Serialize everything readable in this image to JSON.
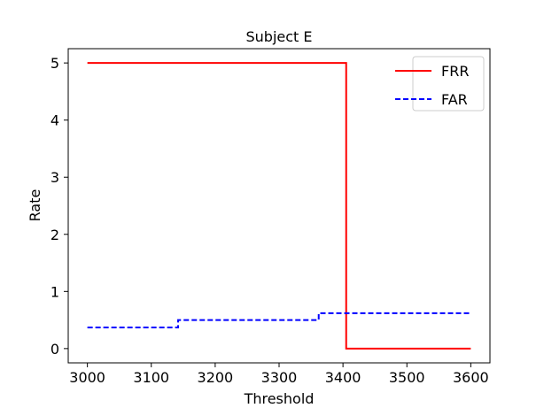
{
  "chart_data": {
    "type": "line",
    "title": "Subject E",
    "xlabel": "Threshold",
    "ylabel": "Rate",
    "xlim": [
      2970,
      3630
    ],
    "ylim": [
      -0.25,
      5.25
    ],
    "xticks": [
      3000,
      3100,
      3200,
      3300,
      3400,
      3500,
      3600
    ],
    "yticks": [
      0,
      1,
      2,
      3,
      4,
      5
    ],
    "grid": false,
    "legend": "top-right",
    "series": [
      {
        "name": "FRR",
        "color": "#ff0000",
        "style": "solid",
        "step": "post",
        "x": [
          3000,
          3405,
          3405,
          3600
        ],
        "y": [
          5,
          5,
          0,
          0
        ]
      },
      {
        "name": "FAR",
        "color": "#0000ff",
        "style": "dashed",
        "step": "post",
        "x": [
          3000,
          3142,
          3142,
          3362,
          3362,
          3600
        ],
        "y": [
          0.37,
          0.37,
          0.5,
          0.5,
          0.62,
          0.62
        ]
      }
    ]
  }
}
